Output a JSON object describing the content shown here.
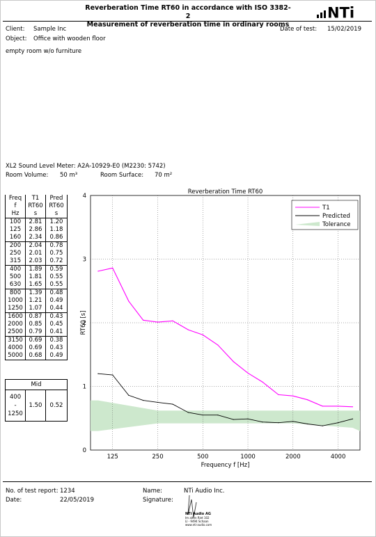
{
  "header": {
    "title_line1": "Reverberation Time RT60 in accordance with ISO 3382-2",
    "title_line2": "Measurement of reverberation time in ordinary rooms",
    "logo_text": "NTi"
  },
  "info": {
    "client_label": "Client:",
    "client_value": "Sample Inc",
    "object_label": "Object:",
    "object_value": "Office with wooden floor",
    "date_label": "Date of test:",
    "date_value": "15/02/2019",
    "note": "empty room w/o furniture"
  },
  "device": {
    "meter": "XL2 Sound Level Meter: A2A-10929-E0 (M2230: 5742)",
    "volume_label": "Room Volume:",
    "volume_value": "50 m³",
    "surface_label": "Room Surface:",
    "surface_value": "70 m²"
  },
  "table": {
    "headers": [
      [
        "Freq",
        "f",
        "Hz"
      ],
      [
        "T1",
        "RT60",
        "s"
      ],
      [
        "Pred",
        "RT60",
        "s"
      ]
    ],
    "rows": [
      [
        "100",
        "2.81",
        "1.20"
      ],
      [
        "125",
        "2.86",
        "1.18"
      ],
      [
        "160",
        "2.34",
        "0.86"
      ],
      [
        "200",
        "2.04",
        "0.78"
      ],
      [
        "250",
        "2.01",
        "0.75"
      ],
      [
        "315",
        "2.03",
        "0.72"
      ],
      [
        "400",
        "1.89",
        "0.59"
      ],
      [
        "500",
        "1.81",
        "0.55"
      ],
      [
        "630",
        "1.65",
        "0.55"
      ],
      [
        "800",
        "1.39",
        "0.48"
      ],
      [
        "1000",
        "1.21",
        "0.49"
      ],
      [
        "1250",
        "1.07",
        "0.44"
      ],
      [
        "1600",
        "0.87",
        "0.43"
      ],
      [
        "2000",
        "0.85",
        "0.45"
      ],
      [
        "2500",
        "0.79",
        "0.41"
      ],
      [
        "3150",
        "0.69",
        "0.38"
      ],
      [
        "4000",
        "0.69",
        "0.43"
      ],
      [
        "5000",
        "0.68",
        "0.49"
      ]
    ],
    "mid_header": "Mid",
    "mid_range": [
      "400",
      "-",
      "1250"
    ],
    "mid_t1": "1.50",
    "mid_pred": "0.52"
  },
  "chart_data": {
    "type": "line",
    "title": "Reverberation Time RT60",
    "xlabel": "Frequency f [Hz]",
    "ylabel": "RT60 [s]",
    "x_scale": "log",
    "x": [
      100,
      125,
      160,
      200,
      250,
      315,
      400,
      500,
      630,
      800,
      1000,
      1250,
      1600,
      2000,
      2500,
      3150,
      4000,
      5000
    ],
    "xlim": [
      89,
      5600
    ],
    "x_ticks": [
      125,
      250,
      500,
      1000,
      2000,
      4000
    ],
    "x_tick_labels": [
      "125",
      "250",
      "500",
      "1000",
      "2000",
      "4000"
    ],
    "ylim": [
      0,
      4
    ],
    "y_ticks": [
      0,
      1,
      2,
      3,
      4
    ],
    "y_tick_labels": [
      "0",
      "1",
      "2",
      "3",
      "4"
    ],
    "grid": true,
    "legend_position": "top-right",
    "series": [
      {
        "name": "T1",
        "color": "#ff00ff",
        "values": [
          2.81,
          2.86,
          2.34,
          2.04,
          2.01,
          2.03,
          1.89,
          1.81,
          1.65,
          1.39,
          1.21,
          1.07,
          0.87,
          0.85,
          0.79,
          0.69,
          0.69,
          0.68
        ]
      },
      {
        "name": "Predicted",
        "color": "#000000",
        "values": [
          1.2,
          1.18,
          0.86,
          0.78,
          0.75,
          0.72,
          0.59,
          0.55,
          0.55,
          0.48,
          0.49,
          0.44,
          0.43,
          0.45,
          0.41,
          0.38,
          0.43,
          0.49
        ]
      }
    ],
    "tolerance": {
      "name": "Tolerance",
      "color": "#cde8cd",
      "x": [
        89,
        100,
        250,
        2000,
        5000,
        5600
      ],
      "upper": [
        0.78,
        0.78,
        0.62,
        0.62,
        0.62,
        0.62
      ],
      "lower": [
        0.3,
        0.3,
        0.42,
        0.42,
        0.35,
        0.3
      ]
    }
  },
  "footer": {
    "report_label": "No. of test report:",
    "report_value": "1234",
    "date_label": "Date:",
    "date_value": "22/05/2019",
    "name_label": "Name:",
    "name_value": "NTi Audio Inc.",
    "signature_label": "Signature:",
    "stamp_lines": [
      "NTi Audio AG",
      "Im alten Riet 102",
      "LI - 9494 Schaan",
      "www.nti-audio.com"
    ]
  }
}
